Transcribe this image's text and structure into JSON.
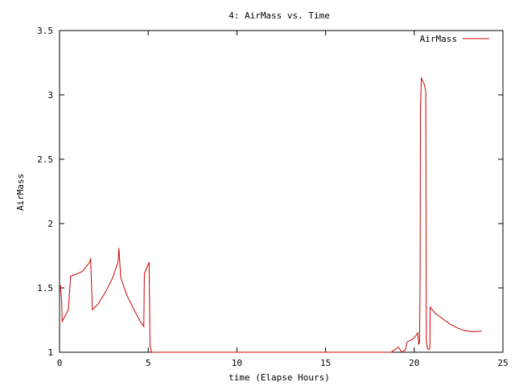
{
  "colors": {
    "series": "#cc0000",
    "axis": "#000000",
    "background": "#ffffff"
  },
  "chart_data": {
    "type": "line",
    "title": "4: AirMass vs. Time",
    "xlabel": "time (Elapse Hours)",
    "ylabel": "AirMass",
    "xlim": [
      0,
      25
    ],
    "ylim": [
      1,
      3.5
    ],
    "xticks": [
      0,
      5,
      10,
      15,
      20,
      25
    ],
    "yticks": [
      1,
      1.5,
      2,
      2.5,
      3,
      3.5
    ],
    "ytick_labels": [
      "1",
      "1.5",
      "2",
      "2.5",
      "3",
      "3.5"
    ],
    "grid": false,
    "legend_position": "top-right",
    "series": [
      {
        "name": "AirMass",
        "points": [
          [
            0.0,
            1.5
          ],
          [
            0.05,
            1.52
          ],
          [
            0.12,
            1.4
          ],
          [
            0.15,
            1.24
          ],
          [
            0.5,
            1.33
          ],
          [
            0.62,
            1.59
          ],
          [
            1.0,
            1.61
          ],
          [
            1.3,
            1.63
          ],
          [
            1.7,
            1.7
          ],
          [
            1.75,
            1.73
          ],
          [
            1.85,
            1.33
          ],
          [
            2.2,
            1.38
          ],
          [
            2.6,
            1.47
          ],
          [
            3.0,
            1.58
          ],
          [
            3.3,
            1.7
          ],
          [
            3.35,
            1.81
          ],
          [
            3.45,
            1.58
          ],
          [
            3.8,
            1.44
          ],
          [
            4.2,
            1.33
          ],
          [
            4.55,
            1.24
          ],
          [
            4.75,
            1.2
          ],
          [
            4.78,
            1.61
          ],
          [
            5.05,
            1.7
          ],
          [
            5.1,
            1.05
          ],
          [
            5.2,
            1.0
          ],
          [
            18.7,
            1.0
          ],
          [
            18.9,
            1.02
          ],
          [
            19.0,
            1.03
          ],
          [
            19.1,
            1.04
          ],
          [
            19.3,
            1.0
          ],
          [
            19.5,
            1.02
          ],
          [
            19.6,
            1.08
          ],
          [
            19.9,
            1.1
          ],
          [
            20.1,
            1.13
          ],
          [
            20.2,
            1.15
          ],
          [
            20.25,
            1.06
          ],
          [
            20.3,
            1.08
          ],
          [
            20.33,
            1.62
          ],
          [
            20.35,
            2.9
          ],
          [
            20.4,
            3.13
          ],
          [
            20.55,
            3.09
          ],
          [
            20.65,
            3.03
          ],
          [
            20.68,
            1.09
          ],
          [
            20.75,
            1.03
          ],
          [
            20.82,
            1.02
          ],
          [
            20.88,
            1.03
          ],
          [
            20.9,
            1.35
          ],
          [
            21.2,
            1.3
          ],
          [
            21.6,
            1.26
          ],
          [
            22.0,
            1.22
          ],
          [
            22.4,
            1.19
          ],
          [
            22.8,
            1.17
          ],
          [
            23.2,
            1.16
          ],
          [
            23.5,
            1.16
          ],
          [
            23.8,
            1.165
          ]
        ]
      }
    ]
  }
}
